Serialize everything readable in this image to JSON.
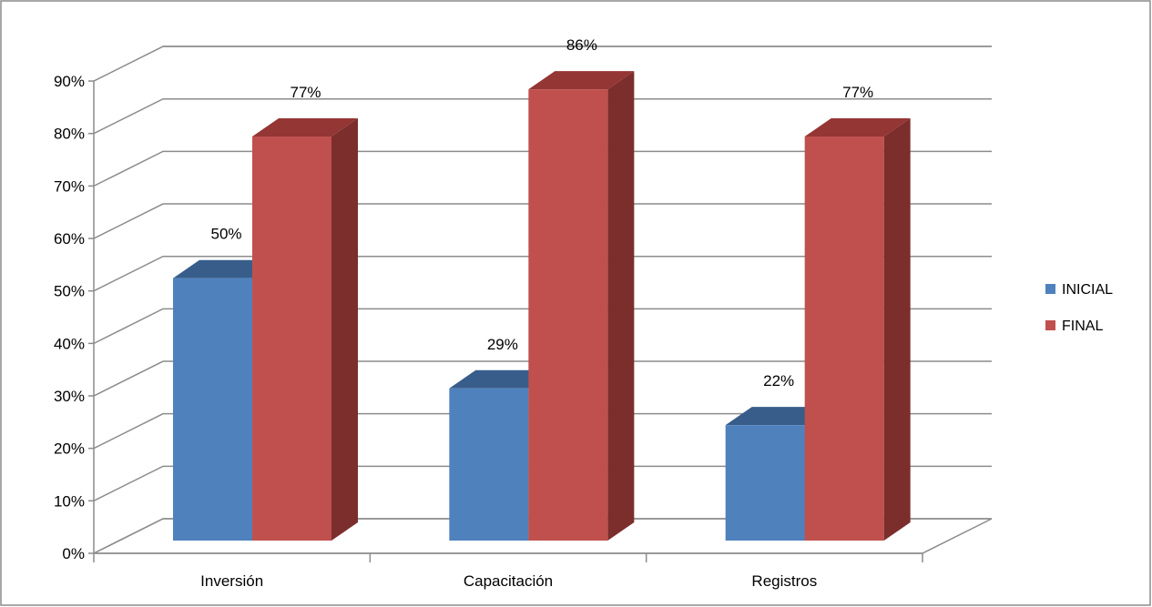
{
  "chart_data": {
    "type": "bar",
    "style": "3d-clustered-column",
    "categories": [
      "Inversión",
      "Capacitación",
      "Registros"
    ],
    "series": [
      {
        "name": "INICIAL",
        "values": [
          50,
          29,
          22
        ],
        "labels": [
          "50%",
          "29%",
          "22%"
        ],
        "color": "#4F81BD",
        "top_color": "#385D8A",
        "side_color": "#2E4C72"
      },
      {
        "name": "FINAL",
        "values": [
          77,
          86,
          77
        ],
        "labels": [
          "77%",
          "86%",
          "77%"
        ],
        "color": "#C0504D",
        "top_color": "#943634",
        "side_color": "#7B2E2C"
      }
    ],
    "y_ticks": [
      "0%",
      "10%",
      "20%",
      "30%",
      "40%",
      "50%",
      "60%",
      "70%",
      "80%",
      "90%"
    ],
    "ylim": [
      0,
      90
    ],
    "grid": true,
    "legend_position": "right"
  }
}
